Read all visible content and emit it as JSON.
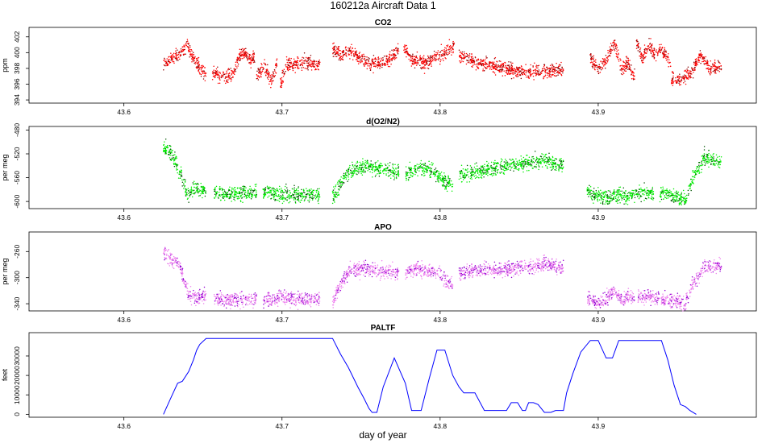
{
  "title": "160212a   Aircraft Data 1",
  "xlabel": "day of year",
  "chart_data": [
    {
      "type": "scatter",
      "title": "CO2",
      "ylabel": "ppm",
      "xlim": [
        43.54,
        44.0
      ],
      "ylim": [
        393.6,
        403.2
      ],
      "x_ticks": [
        "43.6",
        "43.7",
        "43.8",
        "43.9"
      ],
      "y_ticks": [
        "394",
        "396",
        "398",
        "400",
        "402"
      ],
      "color": "#ff0000",
      "dark_color": "#8b0000",
      "segments": [
        {
          "x": [
            43.625,
            43.634,
            43.64,
            43.645,
            43.652
          ],
          "y": [
            398.5,
            399.6,
            401.0,
            399.0,
            397.0
          ]
        },
        {
          "x": [
            43.656,
            43.664,
            43.669,
            43.675,
            43.68,
            43.683
          ],
          "y": [
            397.5,
            396.8,
            397.4,
            400.2,
            399.0,
            399.5
          ]
        },
        {
          "x": [
            43.684,
            43.689,
            43.693,
            43.697
          ],
          "y": [
            397.0,
            398.2,
            396.5,
            398.5
          ]
        },
        {
          "x": [
            43.699,
            43.703,
            43.708,
            43.716,
            43.724
          ],
          "y": [
            396.0,
            398.6,
            398.4,
            398.8,
            398.4
          ]
        },
        {
          "x": [
            43.732,
            43.737,
            43.742,
            43.752,
            43.762,
            43.77,
            43.774
          ],
          "y": [
            400.6,
            399.8,
            400.4,
            398.9,
            398.6,
            399.5,
            400.6
          ]
        },
        {
          "x": [
            43.777,
            43.782,
            43.79,
            43.798,
            43.804,
            43.809
          ],
          "y": [
            400.7,
            399.0,
            398.7,
            399.5,
            400.0,
            401.0
          ]
        },
        {
          "x": [
            43.812,
            43.822,
            43.835,
            43.85,
            43.865,
            43.878
          ],
          "y": [
            399.8,
            398.8,
            398.3,
            397.6,
            397.6,
            397.8
          ]
        },
        {
          "x": [
            43.895,
            43.9,
            43.906,
            43.91,
            43.915,
            43.919,
            43.923
          ],
          "y": [
            399.5,
            397.6,
            399.5,
            401.2,
            398.0,
            398.5,
            397.0
          ]
        },
        {
          "x": [
            43.924,
            43.928,
            43.932,
            43.936,
            43.94,
            43.946
          ],
          "y": [
            401.6,
            399.2,
            401.0,
            399.8,
            400.5,
            398.6
          ]
        },
        {
          "x": [
            43.946,
            43.95,
            43.955,
            43.96,
            43.965,
            43.97,
            43.978
          ],
          "y": [
            396.8,
            396.4,
            397.0,
            397.8,
            399.8,
            398.0,
            398.3
          ]
        }
      ]
    },
    {
      "type": "scatter",
      "title": "d(O2/N2)",
      "ylabel": "per meg",
      "xlim": [
        43.54,
        44.0
      ],
      "ylim": [
        -612,
        -474
      ],
      "x_ticks": [
        "43.6",
        "43.7",
        "43.8",
        "43.9"
      ],
      "y_ticks": [
        "-480",
        "-520",
        "-560",
        "-600"
      ],
      "color": "#00ee00",
      "dark_color": "#005500",
      "segments": [
        {
          "x": [
            43.625,
            43.63,
            43.635,
            43.64,
            43.644,
            43.652
          ],
          "y": [
            -510,
            -520,
            -545,
            -590,
            -580,
            -580
          ]
        },
        {
          "x": [
            43.657,
            43.665,
            43.675,
            43.684
          ],
          "y": [
            -584,
            -588,
            -586,
            -585
          ]
        },
        {
          "x": [
            43.688,
            43.7,
            43.712,
            43.724
          ],
          "y": [
            -585,
            -588,
            -589,
            -589
          ]
        },
        {
          "x": [
            43.732,
            43.737,
            43.743,
            43.752,
            43.762,
            43.77,
            43.774
          ],
          "y": [
            -594,
            -570,
            -548,
            -542,
            -545,
            -550,
            -550
          ]
        },
        {
          "x": [
            43.778,
            43.785,
            43.792,
            43.798,
            43.803,
            43.808
          ],
          "y": [
            -555,
            -545,
            -542,
            -555,
            -566,
            -572
          ]
        },
        {
          "x": [
            43.812,
            43.825,
            43.84,
            43.855,
            43.866,
            43.878
          ],
          "y": [
            -555,
            -550,
            -540,
            -535,
            -530,
            -540
          ]
        },
        {
          "x": [
            43.893,
            43.9,
            43.905,
            43.91,
            43.918,
            43.925,
            43.935
          ],
          "y": [
            -585,
            -590,
            -595,
            -588,
            -593,
            -585,
            -586
          ]
        },
        {
          "x": [
            43.939,
            43.943,
            43.946,
            43.95,
            43.955,
            43.96,
            43.967,
            43.978
          ],
          "y": [
            -588,
            -586,
            -589,
            -592,
            -600,
            -560,
            -525,
            -535
          ]
        }
      ]
    },
    {
      "type": "scatter",
      "title": "APO",
      "ylabel": "per meg",
      "xlim": [
        43.54,
        44.0
      ],
      "ylim": [
        -351,
        -230
      ],
      "x_ticks": [
        "43.6",
        "43.7",
        "43.8",
        "43.9"
      ],
      "y_ticks": [
        "-260",
        "-300",
        "-340"
      ],
      "color": "#ee82ee",
      "dark_color": "#9400d3",
      "segments": [
        {
          "x": [
            43.625,
            43.63,
            43.635,
            43.64,
            43.644,
            43.652
          ],
          "y": [
            -262,
            -272,
            -278,
            -320,
            -330,
            -330
          ]
        },
        {
          "x": [
            43.657,
            43.665,
            43.675,
            43.684
          ],
          "y": [
            -332,
            -335,
            -333,
            -334
          ]
        },
        {
          "x": [
            43.688,
            43.7,
            43.712,
            43.724
          ],
          "y": [
            -334,
            -330,
            -333,
            -332
          ]
        },
        {
          "x": [
            43.732,
            43.737,
            43.743,
            43.752,
            43.762,
            43.77,
            43.774
          ],
          "y": [
            -338,
            -310,
            -290,
            -285,
            -290,
            -292,
            -292
          ]
        },
        {
          "x": [
            43.778,
            43.785,
            43.792,
            43.798,
            43.803,
            43.808
          ],
          "y": [
            -292,
            -285,
            -290,
            -292,
            -303,
            -312
          ]
        },
        {
          "x": [
            43.812,
            43.825,
            43.84,
            43.855,
            43.866,
            43.878
          ],
          "y": [
            -292,
            -289,
            -287,
            -283,
            -280,
            -285
          ]
        },
        {
          "x": [
            43.893,
            43.9,
            43.905,
            43.91,
            43.915,
            43.919,
            43.923
          ],
          "y": [
            -330,
            -340,
            -332,
            -320,
            -335,
            -328,
            -330
          ]
        },
        {
          "x": [
            43.925,
            43.932,
            43.939
          ],
          "y": [
            -330,
            -328,
            -332
          ]
        },
        {
          "x": [
            43.94,
            43.946,
            43.95,
            43.955,
            43.96,
            43.967,
            43.978
          ],
          "y": [
            -335,
            -336,
            -336,
            -340,
            -310,
            -285,
            -280
          ]
        }
      ]
    },
    {
      "type": "line",
      "title": "PALTF",
      "ylabel": "feet",
      "xlim": [
        43.54,
        44.0
      ],
      "ylim": [
        -1500,
        42000
      ],
      "x_ticks": [
        "43.6",
        "43.7",
        "43.8",
        "43.9"
      ],
      "y_ticks": [
        "0",
        "10000",
        "20000",
        "30000"
      ],
      "color": "#0000ff",
      "series": [
        {
          "name": "PALTF",
          "x": [
            43.625,
            43.63,
            43.634,
            43.637,
            43.641,
            43.644,
            43.646,
            43.648,
            43.652,
            43.675,
            43.7,
            43.732,
            43.737,
            43.742,
            43.748,
            43.752,
            43.755,
            43.757,
            43.76,
            43.764,
            43.771,
            43.778,
            43.782,
            43.788,
            43.793,
            43.798,
            43.803,
            43.808,
            43.812,
            43.815,
            43.818,
            43.822,
            43.828,
            43.834,
            43.842,
            43.845,
            43.849,
            43.852,
            43.854,
            43.856,
            43.859,
            43.862,
            43.866,
            43.87,
            43.873,
            43.878,
            43.88,
            43.884,
            43.889,
            43.895,
            43.9,
            43.905,
            43.909,
            43.913,
            43.922,
            43.934,
            43.94,
            43.944,
            43.948,
            43.952,
            43.955,
            43.958,
            43.962
          ],
          "y": [
            0,
            9000,
            16000,
            17000,
            22000,
            28000,
            33000,
            36000,
            39000,
            39000,
            39000,
            39000,
            31000,
            24000,
            14000,
            8000,
            3000,
            1000,
            1000,
            14000,
            29000,
            16000,
            2000,
            2000,
            18000,
            33000,
            33000,
            20000,
            14000,
            11000,
            11000,
            11000,
            2000,
            2000,
            2000,
            6000,
            6000,
            2000,
            2000,
            6000,
            6000,
            5000,
            1000,
            1000,
            2000,
            2000,
            11000,
            21000,
            32000,
            38000,
            38000,
            29000,
            29000,
            38000,
            38000,
            38000,
            38000,
            28000,
            15000,
            5000,
            4000,
            2000,
            0
          ]
        }
      ]
    }
  ]
}
